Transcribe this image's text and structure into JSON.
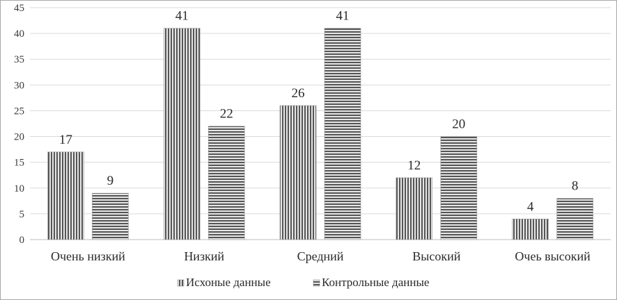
{
  "chart_data": {
    "type": "bar",
    "categories": [
      "Очень низкий",
      "Низкий",
      "Средний",
      "Высокий",
      "Очеь высокий"
    ],
    "series": [
      {
        "name": "Исхоные данные",
        "values": [
          17,
          41,
          26,
          12,
          4
        ],
        "pattern": "vertical-stripes"
      },
      {
        "name": "Контрольные данные",
        "values": [
          9,
          22,
          41,
          20,
          8
        ],
        "pattern": "horizontal-stripes"
      }
    ],
    "yticks": [
      "0",
      "5",
      "10",
      "15",
      "20",
      "25",
      "30",
      "35",
      "40",
      "45"
    ],
    "ylim": [
      0,
      45
    ],
    "grid": true,
    "legend_position": "bottom",
    "colors": {
      "bar_dark": "#555555",
      "bar_light": "#e6e6e6",
      "grid": "#d9d9d9"
    }
  }
}
